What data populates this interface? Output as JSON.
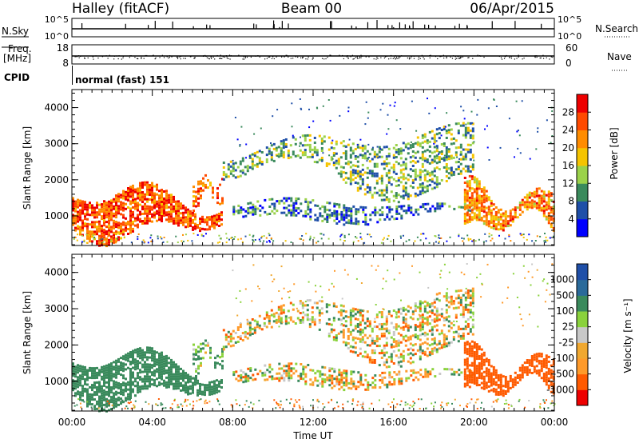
{
  "header": {
    "station": "Halley (fitACF)",
    "beam": "Beam 00",
    "date": "06/Apr/2015"
  },
  "top_strips": {
    "nsky_label": "N.Sky",
    "nsky_ticks": [
      "10^5",
      "10^0"
    ],
    "nsearch_label": "N.Search",
    "nsearch_ticks": [
      "10^5",
      "10^0"
    ],
    "freq_label": "Freq.",
    "freq_unit": "[MHz]",
    "freq_ticks": [
      "18",
      "8"
    ],
    "nave_label": "Nave",
    "nave_ticks": [
      "60",
      "0"
    ],
    "cpid_label": "CPID",
    "cpid_value": "normal (fast) 151"
  },
  "time_axis": {
    "label": "Time UT",
    "ticks": [
      "00:00",
      "04:00",
      "08:00",
      "12:00",
      "16:00",
      "20:00",
      "00:00"
    ]
  },
  "colors": {
    "power": [
      "#0000ff",
      "#1f4fa8",
      "#3a8a5c",
      "#9bd24a",
      "#f5c400",
      "#ff8c00",
      "#ff4a00",
      "#ee0000"
    ],
    "velocity": [
      "#ee0000",
      "#ff5a00",
      "#ff9a2a",
      "#f0a830",
      "#c8c8c8",
      "#8ad23c",
      "#3a8a5c",
      "#2a6a9a",
      "#1f4fa8"
    ]
  },
  "chart_data": [
    {
      "type": "heatmap",
      "panel": "power",
      "xlabel": "Time UT",
      "ylabel": "Slant Range [km]",
      "xlim": [
        "00:00",
        "00:00"
      ],
      "ylim": [
        180,
        4500
      ],
      "yticks": [
        "1000",
        "2000",
        "3000",
        "4000"
      ],
      "colorbar_label": "Power [dB]",
      "colorbar_ticks": [
        "4",
        "8",
        "12",
        "16",
        "20",
        "24",
        "28"
      ],
      "echo_regions": [
        {
          "t_start": 0.0,
          "t_end": 7.5,
          "range_km": [
            500,
            1700
          ],
          "level_db": 26
        },
        {
          "t_start": 6.0,
          "t_end": 7.5,
          "range_km": [
            1300,
            2200
          ],
          "level_db": 24
        },
        {
          "t_start": 7.5,
          "t_end": 20.0,
          "range_km": [
            1800,
            3300
          ],
          "level_db": 12
        },
        {
          "t_start": 8.0,
          "t_end": 20.0,
          "range_km": [
            900,
            1400
          ],
          "level_db": 8
        },
        {
          "t_start": 19.5,
          "t_end": 24.0,
          "range_km": [
            600,
            1800
          ],
          "level_db": 22
        }
      ]
    },
    {
      "type": "heatmap",
      "panel": "velocity",
      "xlabel": "Time UT",
      "ylabel": "Slant Range [km]",
      "xlim": [
        "00:00",
        "00:00"
      ],
      "ylim": [
        180,
        4500
      ],
      "yticks": [
        "1000",
        "2000",
        "3000",
        "4000"
      ],
      "colorbar_label": "Velocity [m s⁻¹]",
      "colorbar_ticks": [
        "1000",
        "500",
        "100",
        "25",
        "-25",
        "-100",
        "-500",
        "-1000"
      ],
      "echo_regions": [
        {
          "t_start": 0.0,
          "t_end": 7.5,
          "range_km": [
            500,
            1700
          ],
          "velocity": 300
        },
        {
          "t_start": 6.0,
          "t_end": 7.5,
          "range_km": [
            1300,
            2200
          ],
          "velocity": 100
        },
        {
          "t_start": 7.5,
          "t_end": 20.0,
          "range_km": [
            1800,
            3300
          ],
          "velocity": 0
        },
        {
          "t_start": 8.0,
          "t_end": 20.0,
          "range_km": [
            900,
            1400
          ],
          "velocity": 0
        },
        {
          "t_start": 19.5,
          "t_end": 24.0,
          "range_km": [
            600,
            1800
          ],
          "velocity": -300
        }
      ]
    }
  ]
}
